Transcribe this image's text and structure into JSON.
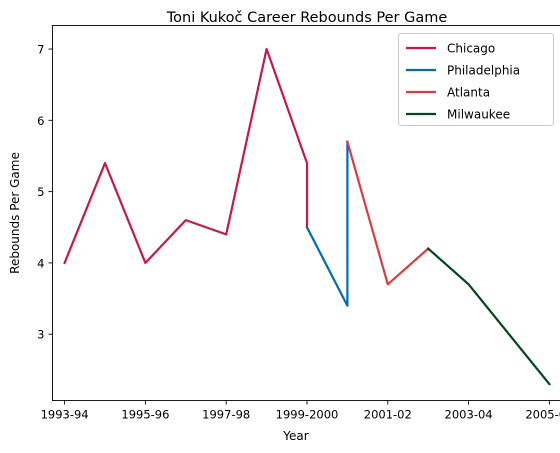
{
  "chart_data": {
    "type": "line",
    "title": "Toni Kukoč Career Rebounds Per Game",
    "xlabel": "Year",
    "ylabel": "Rebounds Per Game",
    "xlim": [
      -0.3,
      12.3
    ],
    "ylim": [
      2.07,
      7.33
    ],
    "x_ticks": [
      {
        "x": 0,
        "label": "1993-94"
      },
      {
        "x": 2,
        "label": "1995-96"
      },
      {
        "x": 4,
        "label": "1997-98"
      },
      {
        "x": 6,
        "label": "1999-2000"
      },
      {
        "x": 8,
        "label": "2001-02"
      },
      {
        "x": 10,
        "label": "2003-04"
      },
      {
        "x": 12,
        "label": "2005-06"
      }
    ],
    "y_ticks": [
      3,
      4,
      5,
      6,
      7
    ],
    "grid": false,
    "legend_position": "top-right",
    "series": [
      {
        "name": "Chicago",
        "color": "#c8184a",
        "points": [
          [
            0,
            4.0
          ],
          [
            1,
            5.4
          ],
          [
            2,
            4.0
          ],
          [
            3,
            4.6
          ],
          [
            4,
            4.4
          ],
          [
            5,
            7.0
          ],
          [
            6,
            5.4
          ],
          [
            6,
            4.5
          ]
        ]
      },
      {
        "name": "Philadelphia",
        "color": "#006bb6",
        "points": [
          [
            6,
            4.5
          ],
          [
            7,
            3.4
          ],
          [
            7,
            5.7
          ]
        ]
      },
      {
        "name": "Atlanta",
        "color": "#e03a3e",
        "points": [
          [
            7,
            5.7
          ],
          [
            8,
            3.7
          ],
          [
            9,
            4.2
          ]
        ]
      },
      {
        "name": "Milwaukee",
        "color": "#00471b",
        "points": [
          [
            9,
            4.2
          ],
          [
            10,
            3.7
          ],
          [
            12,
            2.3
          ]
        ]
      }
    ]
  }
}
